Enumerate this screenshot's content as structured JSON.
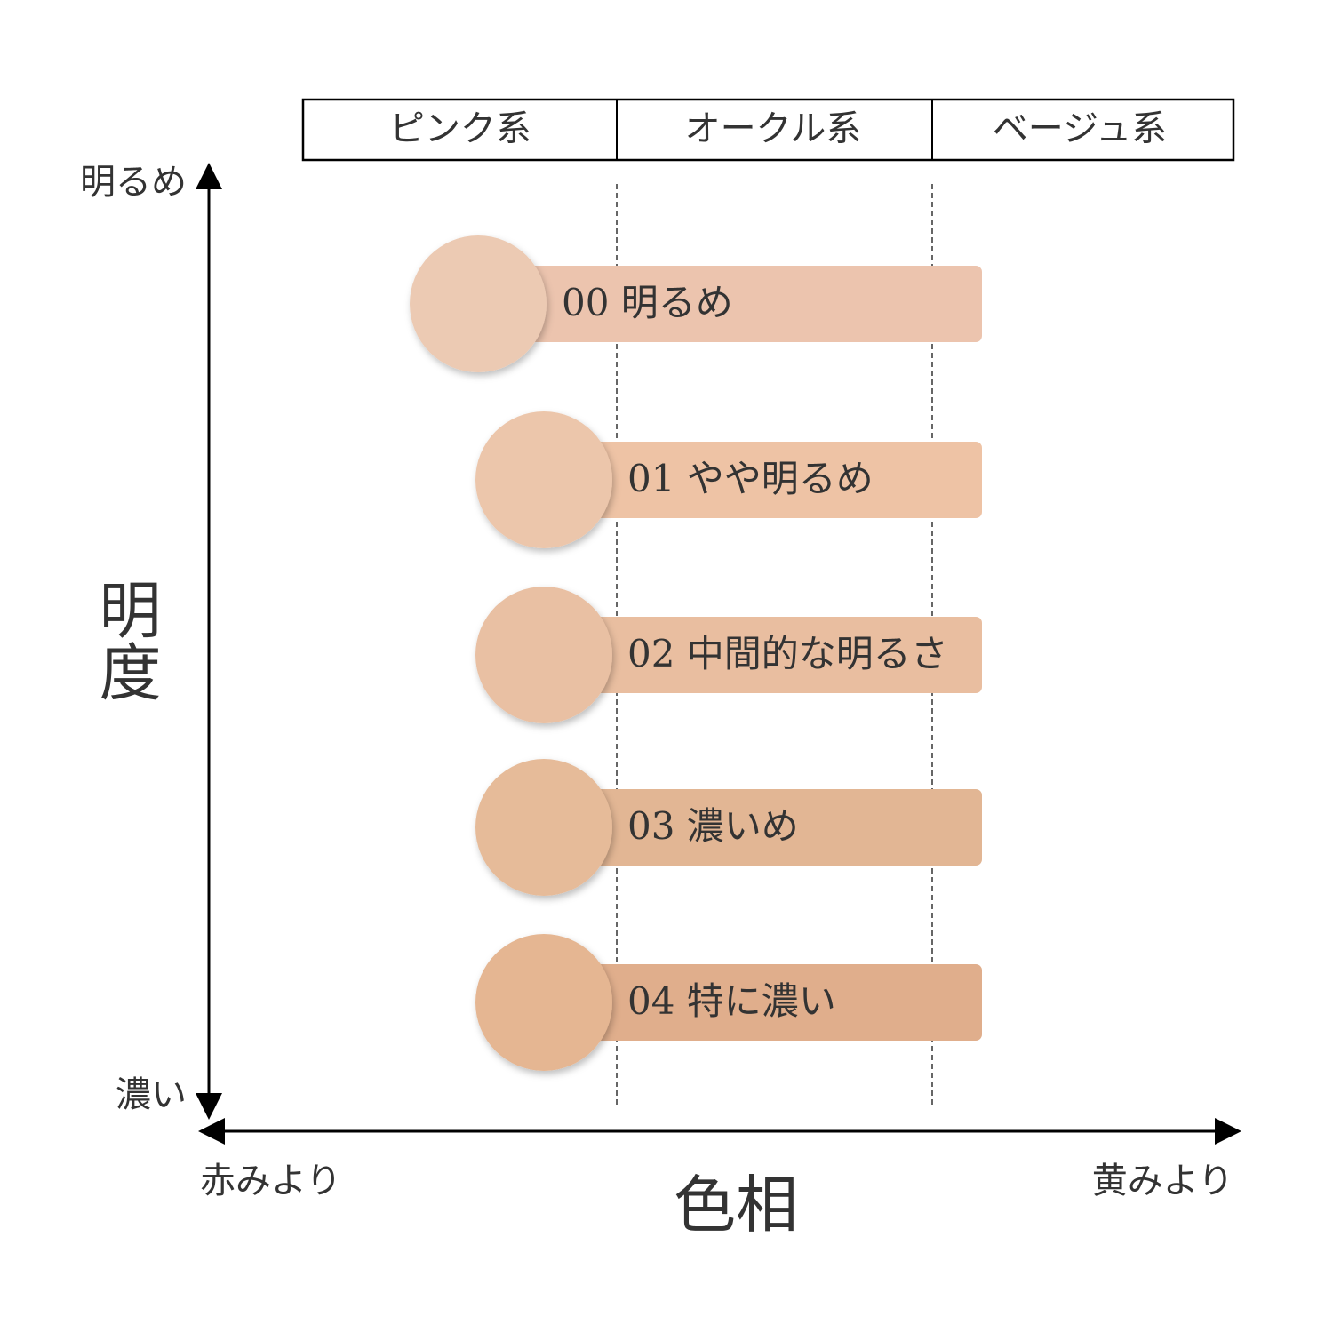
{
  "header": {
    "columns": [
      "ピンク系",
      "オークル系",
      "ベージュ系"
    ]
  },
  "y_axis": {
    "label": "明度",
    "top": "明るめ",
    "bottom": "濃い"
  },
  "x_axis": {
    "label": "色相",
    "left": "赤みより",
    "right": "黄みより"
  },
  "items": [
    {
      "label": "00 明るめ"
    },
    {
      "label": "01 やや明るめ"
    },
    {
      "label": "02 中間的な明るさ"
    },
    {
      "label": "03 濃いめ"
    },
    {
      "label": "04 特に濃い"
    }
  ]
}
